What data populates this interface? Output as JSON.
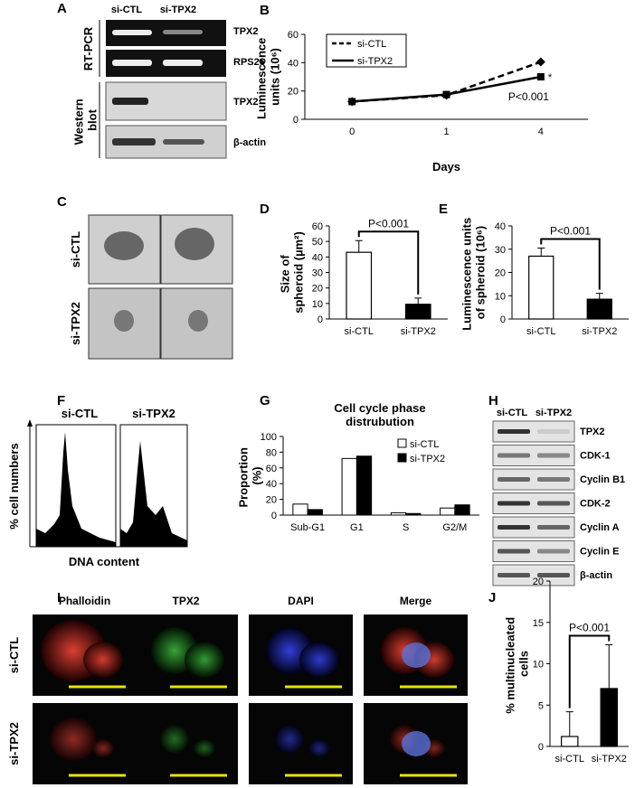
{
  "panels": {
    "panel_a": {
      "letter": "A",
      "lanes": [
        "si-CTL",
        "si-TPX2"
      ],
      "methods": [
        "RT-PCR",
        "Western blot"
      ],
      "bands": [
        "TPX2",
        "RPS26",
        "TPX2",
        "β-actin"
      ]
    },
    "panel_c": {
      "letter": "C",
      "rows": [
        "si-CTL",
        "si-TPX2"
      ]
    },
    "panel_f": {
      "letter": "F",
      "columns": [
        "si-CTL",
        "si-TPX2"
      ],
      "ylabel": "% cell numbers",
      "xlabel": "DNA content"
    },
    "panel_h": {
      "letter": "H",
      "lanes": [
        "si-CTL",
        "si-TPX2"
      ],
      "bands": [
        "TPX2",
        "CDK-1",
        "Cyclin B1",
        "CDK-2",
        "Cyclin A",
        "Cyclin E",
        "β-actin"
      ]
    },
    "panel_i": {
      "letter": "I",
      "columns": [
        "Phalloidin",
        "TPX2",
        "DAPI",
        "Merge"
      ],
      "rows": [
        "si-CTL",
        "si-TPX2"
      ]
    }
  },
  "chart_data": [
    {
      "type": "line",
      "letter": "B",
      "xlabel": "Days",
      "ylabel": "Luminescence units (10⁶)",
      "categories": [
        "0",
        "1",
        "4"
      ],
      "series": [
        {
          "name": "si-CTL",
          "color": "#000000",
          "dash": true,
          "marker": "diamond",
          "values": [
            12.5,
            17,
            40.5
          ]
        },
        {
          "name": "si-TPX2",
          "color": "#000000",
          "dash": false,
          "marker": "square",
          "values": [
            12.5,
            17.5,
            30
          ]
        }
      ],
      "ylim": [
        0,
        60
      ],
      "yticks": [
        0,
        20,
        40,
        60
      ],
      "legend": "top-left",
      "annotations": [
        "*",
        "P<0.001"
      ]
    },
    {
      "type": "bar",
      "letter": "D",
      "ylabel": "Size of spheroid (µm²)",
      "categories": [
        "si-CTL",
        "si-TPX2"
      ],
      "values": [
        43,
        9.5
      ],
      "errors": [
        7.5,
        4
      ],
      "colors": [
        "#ffffff",
        "#000000"
      ],
      "ylim": [
        0,
        60
      ],
      "yticks": [
        0,
        10,
        20,
        30,
        40,
        50,
        60
      ],
      "annotation": "P<0.001"
    },
    {
      "type": "bar",
      "letter": "E",
      "ylabel": "Luminescence units of spheroid (10⁶)",
      "categories": [
        "si-CTL",
        "si-TPX2"
      ],
      "values": [
        27,
        8.5
      ],
      "errors": [
        3.5,
        2.5
      ],
      "colors": [
        "#ffffff",
        "#000000"
      ],
      "ylim": [
        0,
        40
      ],
      "yticks": [
        0,
        10,
        20,
        30,
        40
      ],
      "annotation": "P<0.001"
    },
    {
      "type": "grouped",
      "letter": "G",
      "title": "Cell cycle phase distrubution",
      "ylabel": "Proportion (%)",
      "categories": [
        "Sub-G1",
        "G1",
        "S",
        "G2/M"
      ],
      "series": [
        {
          "name": "si-CTL",
          "color": "#ffffff",
          "values": [
            14,
            72,
            3,
            9
          ]
        },
        {
          "name": "si-TPX2",
          "color": "#000000",
          "values": [
            7,
            75,
            2,
            13
          ]
        }
      ],
      "ylim": [
        0,
        100
      ],
      "yticks": [
        0,
        20,
        40,
        60,
        80,
        100
      ],
      "legend": "top-right"
    },
    {
      "type": "bar",
      "letter": "J",
      "ylabel": "% multinucleated cells",
      "categories": [
        "si-CTL",
        "si-TPX2"
      ],
      "values": [
        1.2,
        7
      ],
      "errors": [
        3,
        5.3
      ],
      "colors": [
        "#ffffff",
        "#000000"
      ],
      "ylim": [
        0,
        20
      ],
      "yticks": [
        0,
        5,
        10,
        15,
        20
      ],
      "annotation": "P<0.001"
    }
  ]
}
